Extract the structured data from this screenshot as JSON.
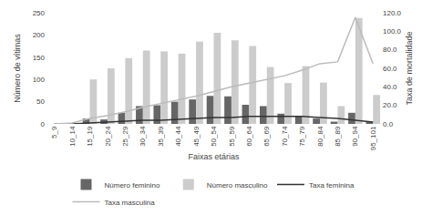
{
  "chart_data": {
    "type": "bar",
    "xlabel": "Faixas etárias",
    "ylabel": "Número de vítimas",
    "y2label": "Taxa de mortalidade",
    "categories": [
      "5_9",
      "10_14",
      "15_19",
      "20_24",
      "25_29",
      "30_34",
      "35_39",
      "40_44",
      "45_49",
      "50_54",
      "55_59",
      "60_64",
      "65_69",
      "70_74",
      "75_79",
      "80_84",
      "85_89",
      "90_94",
      "95_101"
    ],
    "series": [
      {
        "name": "Número feminino",
        "type": "bar",
        "color": "#666666",
        "values": [
          0,
          0,
          12,
          10,
          25,
          40,
          42,
          50,
          55,
          63,
          62,
          43,
          40,
          23,
          18,
          12,
          5,
          25,
          3
        ]
      },
      {
        "name": "Número masculino",
        "type": "bar",
        "color": "#cccccc",
        "values": [
          0,
          2,
          100,
          125,
          148,
          165,
          163,
          158,
          185,
          205,
          188,
          175,
          128,
          92,
          130,
          93,
          40,
          238,
          65
        ]
      },
      {
        "name": "Taxa feminina",
        "type": "line",
        "axis": "y2",
        "color": "#333333",
        "values": [
          0,
          0,
          1,
          2,
          3,
          4,
          4,
          5,
          6,
          7,
          7,
          8,
          8,
          8,
          8,
          7,
          6,
          4,
          2
        ]
      },
      {
        "name": "Taxa masculina",
        "type": "line",
        "axis": "y2",
        "color": "#bbbbbb",
        "values": [
          0,
          1,
          6,
          9,
          13,
          18,
          22,
          26,
          30,
          35,
          40,
          44,
          48,
          52,
          58,
          65,
          67,
          115,
          65
        ]
      }
    ],
    "ylim": [
      0,
      250
    ],
    "yticks": [
      0,
      50,
      100,
      150,
      200,
      250
    ],
    "y2lim": [
      0,
      120
    ],
    "y2ticks": [
      {
        "value": 0,
        "label": "0.0"
      },
      {
        "value": 20,
        "label": "20.0"
      },
      {
        "value": 40,
        "label": "40.0"
      },
      {
        "value": 60,
        "label": "60.0"
      },
      {
        "value": 80,
        "label": "80.0"
      },
      {
        "value": 100,
        "label": "100.0"
      },
      {
        "value": 120,
        "label": "120.0"
      }
    ],
    "grid": false,
    "legend": "bottom"
  }
}
